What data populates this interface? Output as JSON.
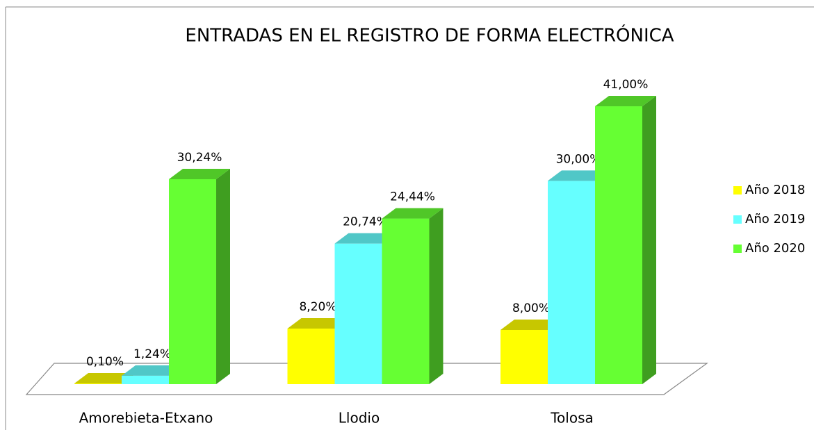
{
  "chart_data": {
    "type": "bar3d",
    "title": "ENTRADAS EN EL REGISTRO DE FORMA ELECTRÓNICA",
    "categories": [
      "Amorebieta-Etxano",
      "Llodio",
      "Tolosa"
    ],
    "series": [
      {
        "name": "Año 2018",
        "color": "#ffff00",
        "values": [
          0.1,
          8.2,
          8.0
        ],
        "value_labels": [
          "0,10%",
          "8,20%",
          "8,00%"
        ]
      },
      {
        "name": "Año 2019",
        "color": "#66ffff",
        "values": [
          1.24,
          20.74,
          30.0
        ],
        "value_labels": [
          "1,24%",
          "20,74%",
          "30,00%"
        ]
      },
      {
        "name": "Año 2020",
        "color": "#66ff33",
        "values": [
          30.24,
          24.44,
          41.0
        ],
        "value_labels": [
          "30,24%",
          "24,44%",
          "41,00%"
        ]
      }
    ],
    "ylim": [
      0,
      45
    ],
    "legend": "right"
  }
}
